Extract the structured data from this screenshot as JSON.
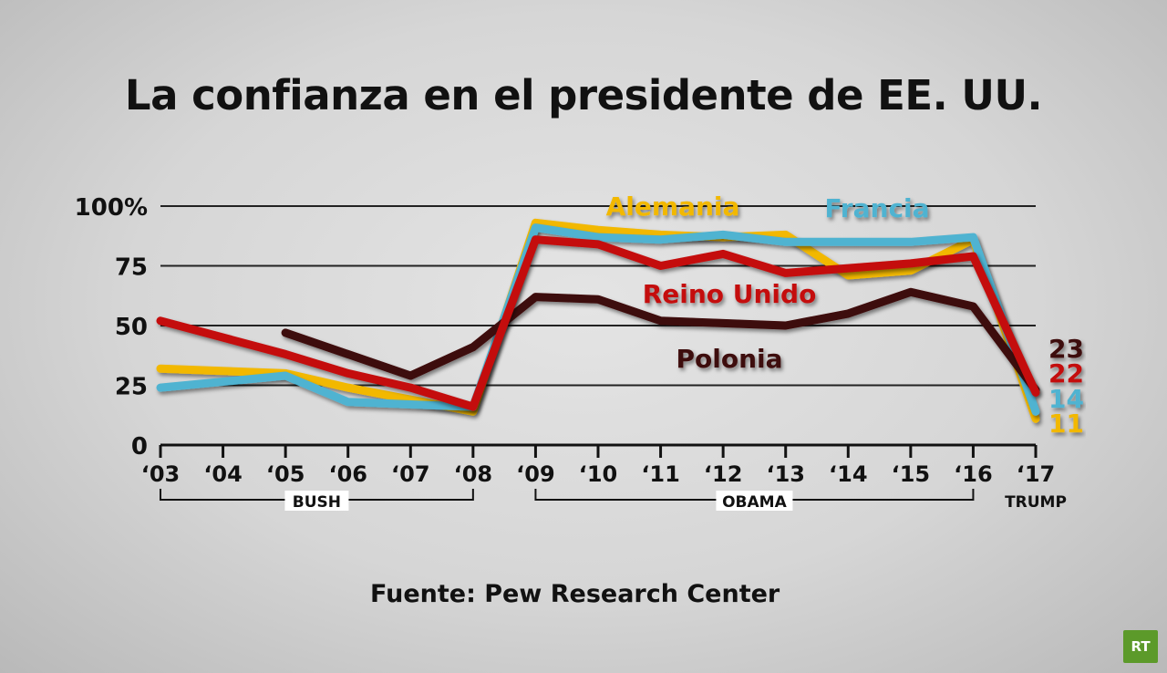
{
  "title": "La confianza en el presidente de EE. UU.",
  "source": "Fuente: Pew Research Center",
  "logo": "RT",
  "chart_data": {
    "type": "line",
    "title": "La confianza en el presidente de EE. UU.",
    "xlabel": "",
    "ylabel": "",
    "ylim": [
      0,
      100
    ],
    "yticks": [
      "0",
      "25",
      "50",
      "75",
      "100%"
    ],
    "ytick_values": [
      0,
      25,
      50,
      75,
      100
    ],
    "x": [
      2003,
      2004,
      2005,
      2006,
      2007,
      2008,
      2009,
      2010,
      2011,
      2012,
      2013,
      2014,
      2015,
      2016,
      2017
    ],
    "xtick_labels": [
      "‘03",
      "‘04",
      "‘05",
      "‘06",
      "‘07",
      "‘08",
      "‘09",
      "‘10",
      "‘11",
      "‘12",
      "‘13",
      "‘14",
      "‘15",
      "‘16",
      "‘17"
    ],
    "grid": true,
    "periods": [
      {
        "label": "BUSH",
        "from": 2003,
        "to": 2008
      },
      {
        "label": "OBAMA",
        "from": 2009,
        "to": 2016
      },
      {
        "label": "TRUMP",
        "from": 2017,
        "to": 2017
      }
    ],
    "series": [
      {
        "name": "Alemania",
        "color": "#f2b800",
        "end_label": "11",
        "values": [
          32,
          null,
          30,
          24,
          19,
          14,
          93,
          90,
          88,
          87,
          88,
          71,
          73,
          86,
          11
        ]
      },
      {
        "name": "Francia",
        "color": "#4fb3d1",
        "end_label": "14",
        "values": [
          24,
          null,
          29,
          18,
          17,
          16,
          91,
          87,
          86,
          88,
          85,
          85,
          85,
          87,
          14
        ]
      },
      {
        "name": "Reino Unido",
        "color": "#c40b0b",
        "end_label": "22",
        "values": [
          52,
          null,
          38,
          30,
          24,
          16,
          86,
          84,
          75,
          80,
          72,
          74,
          76,
          79,
          22
        ]
      },
      {
        "name": "Polonia",
        "color": "#3d0707",
        "end_label": "23",
        "values": [
          null,
          null,
          47,
          null,
          29,
          41,
          62,
          61,
          52,
          51,
          50,
          55,
          64,
          58,
          23
        ]
      }
    ]
  }
}
